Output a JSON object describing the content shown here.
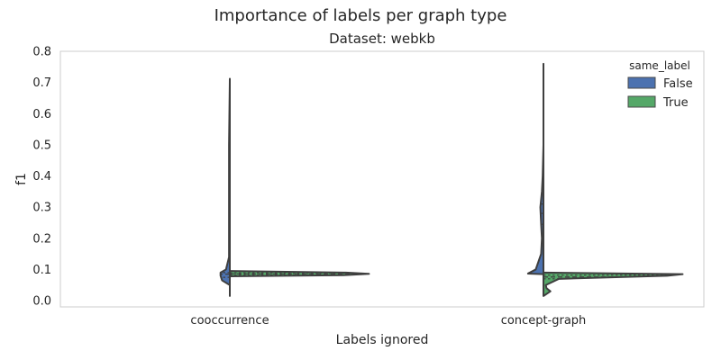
{
  "suptitle": "Importance of labels per graph type",
  "chart_data": {
    "type": "violin",
    "title": "Dataset: webkb",
    "xlabel": "Labels ignored",
    "ylabel": "f1",
    "categories": [
      "cooccurrence",
      "concept-graph"
    ],
    "ylim": [
      -0.02,
      0.8
    ],
    "yticks": [
      "0.0",
      "0.1",
      "0.2",
      "0.3",
      "0.4",
      "0.5",
      "0.6",
      "0.7",
      "0.8"
    ],
    "grid": false,
    "split": true,
    "legend": {
      "title": "same_label",
      "position": "top-right",
      "entries": [
        {
          "label": "False",
          "color": "#4C72B0"
        },
        {
          "label": "True",
          "color": "#55A868"
        }
      ]
    },
    "series": [
      {
        "name": "False",
        "color": "#4C72B0",
        "side": "left",
        "violins": [
          {
            "category": "cooccurrence",
            "profile": [
              [
                0.015,
                0.0
              ],
              [
                0.05,
                0.0
              ],
              [
                0.065,
                0.01
              ],
              [
                0.08,
                0.012
              ],
              [
                0.09,
                0.012
              ],
              [
                0.1,
                0.005
              ],
              [
                0.14,
                0.001
              ],
              [
                0.2,
                0.001
              ],
              [
                0.3,
                0.001
              ],
              [
                0.5,
                0.001
              ],
              [
                0.712,
                0.0
              ]
            ],
            "quartiles": [
              0.075,
              0.085,
              0.09
            ]
          },
          {
            "category": "concept-graph",
            "profile": [
              [
                0.085,
                0.0
              ],
              [
                0.087,
                0.02
              ],
              [
                0.1,
                0.01
              ],
              [
                0.15,
                0.003
              ],
              [
                0.2,
                0.002
              ],
              [
                0.245,
                0.003
              ],
              [
                0.3,
                0.004
              ],
              [
                0.35,
                0.002
              ],
              [
                0.4,
                0.001
              ],
              [
                0.5,
                0.0
              ],
              [
                0.6,
                0.0
              ],
              [
                0.76,
                0.0
              ]
            ],
            "quartiles": [
              0.245,
              0.28,
              0.31
            ]
          }
        ]
      },
      {
        "name": "True",
        "color": "#55A868",
        "side": "right",
        "violins": [
          {
            "category": "cooccurrence",
            "profile": [
              [
                0.078,
                0.0
              ],
              [
                0.082,
                0.15
              ],
              [
                0.086,
                0.18
              ],
              [
                0.09,
                0.15
              ],
              [
                0.095,
                0.0
              ]
            ],
            "quartiles": [
              0.083,
              0.086,
              0.089
            ]
          },
          {
            "category": "concept-graph",
            "profile": [
              [
                0.015,
                0.0
              ],
              [
                0.02,
                0.003
              ],
              [
                0.03,
                0.009
              ],
              [
                0.04,
                0.004
              ],
              [
                0.05,
                0.003
              ],
              [
                0.07,
                0.02
              ],
              [
                0.08,
                0.16
              ],
              [
                0.085,
                0.18
              ],
              [
                0.09,
                0.0
              ]
            ],
            "quartiles": [
              0.07,
              0.076,
              0.082
            ]
          }
        ]
      }
    ]
  }
}
